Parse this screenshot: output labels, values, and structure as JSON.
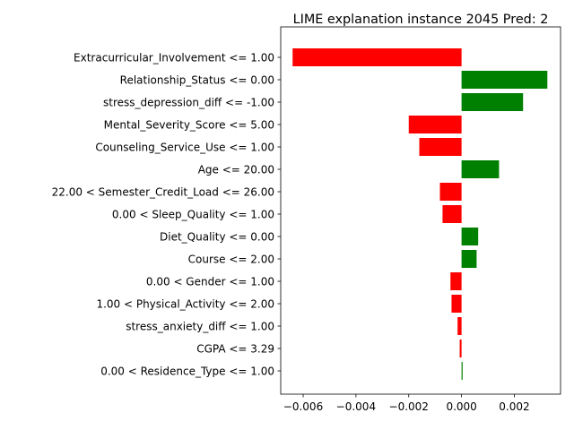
{
  "chart_data": {
    "type": "bar",
    "orientation": "horizontal",
    "title": "LIME explanation instance 2045 Pred: 2",
    "xlabel": "",
    "ylabel": "",
    "categories": [
      "Extracurricular_Involvement <= 1.00",
      "Relationship_Status <= 0.00",
      "stress_depression_diff <= -1.00",
      "Mental_Severity_Score <= 5.00",
      "Counseling_Service_Use <= 1.00",
      "Age <= 20.00",
      "22.00 < Semester_Credit_Load <= 26.00",
      "0.00 < Sleep_Quality <= 1.00",
      "Diet_Quality <= 0.00",
      "Course <= 2.00",
      "0.00 < Gender <= 1.00",
      "1.00 < Physical_Activity <= 2.00",
      "stress_anxiety_diff <= 1.00",
      "CGPA <= 3.29",
      "0.00 < Residence_Type <= 1.00"
    ],
    "values": [
      -0.0064,
      0.00325,
      0.00233,
      -0.002,
      -0.0016,
      0.00142,
      -0.00082,
      -0.00072,
      0.00063,
      0.00057,
      -0.00042,
      -0.00038,
      -0.00015,
      -7e-05,
      4e-05
    ],
    "xlim": [
      -0.00685,
      0.00375
    ],
    "xticks": [
      -0.006,
      -0.004,
      -0.002,
      0.0,
      0.002
    ],
    "xtick_labels": [
      "−0.006",
      "−0.004",
      "−0.002",
      "0.000",
      "0.002"
    ],
    "colors": {
      "positive": "#008000",
      "negative": "#ff0000"
    },
    "grid": false
  }
}
